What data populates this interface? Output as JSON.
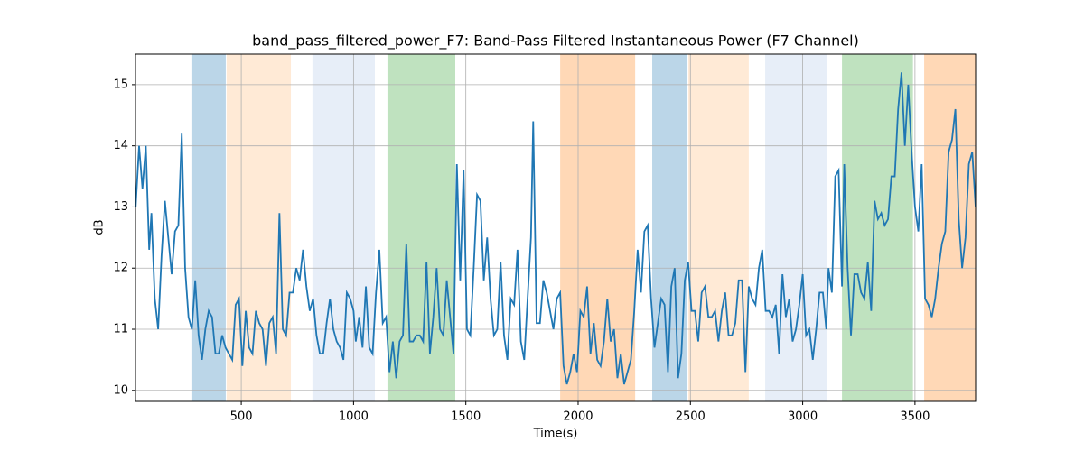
{
  "chart_data": {
    "type": "line",
    "title": "band_pass_filtered_power_F7: Band-Pass Filtered Instantaneous Power (F7 Channel)",
    "xlabel": "Time(s)",
    "ylabel": "dB",
    "xlim": [
      29,
      3770
    ],
    "ylim": [
      9.82,
      15.5
    ],
    "xticks": [
      500,
      1000,
      1500,
      2000,
      2500,
      3000,
      3500
    ],
    "yticks": [
      10,
      11,
      12,
      13,
      14,
      15
    ],
    "grid": true,
    "span_alpha": 0.3,
    "spans": [
      {
        "start": 278,
        "end": 431,
        "color": "#1f77b4"
      },
      {
        "start": 435,
        "end": 721,
        "color": "#ffbb78"
      },
      {
        "start": 817,
        "end": 1095,
        "color": "#aec7e8"
      },
      {
        "start": 1151,
        "end": 1453,
        "color": "#2ca02c"
      },
      {
        "start": 1920,
        "end": 2254,
        "color": "#ff7f0e"
      },
      {
        "start": 2330,
        "end": 2486,
        "color": "#1f77b4"
      },
      {
        "start": 2491,
        "end": 2760,
        "color": "#ffbb78"
      },
      {
        "start": 2833,
        "end": 3110,
        "color": "#aec7e8"
      },
      {
        "start": 3175,
        "end": 3491,
        "color": "#2ca02c"
      },
      {
        "start": 3541,
        "end": 3770,
        "color": "#ff7f0e"
      }
    ],
    "series": [
      {
        "color": "#1f77b4",
        "x": [
          30,
          45,
          60,
          75,
          90,
          100,
          115,
          130,
          145,
          160,
          175,
          190,
          205,
          220,
          235,
          250,
          265,
          280,
          295,
          310,
          325,
          340,
          355,
          370,
          385,
          400,
          415,
          430,
          445,
          460,
          475,
          490,
          505,
          520,
          535,
          550,
          565,
          580,
          595,
          610,
          625,
          640,
          655,
          670,
          685,
          700,
          715,
          730,
          745,
          760,
          775,
          790,
          805,
          820,
          835,
          850,
          865,
          880,
          895,
          910,
          925,
          940,
          955,
          970,
          985,
          1000,
          1010,
          1025,
          1040,
          1055,
          1070,
          1085,
          1100,
          1115,
          1130,
          1145,
          1160,
          1175,
          1190,
          1205,
          1220,
          1235,
          1250,
          1265,
          1280,
          1295,
          1310,
          1325,
          1340,
          1355,
          1370,
          1385,
          1400,
          1415,
          1430,
          1445,
          1460,
          1475,
          1490,
          1505,
          1520,
          1535,
          1550,
          1565,
          1580,
          1595,
          1610,
          1625,
          1640,
          1655,
          1670,
          1685,
          1700,
          1715,
          1730,
          1745,
          1760,
          1775,
          1790,
          1800,
          1815,
          1830,
          1845,
          1860,
          1875,
          1890,
          1905,
          1920,
          1935,
          1950,
          1965,
          1980,
          1995,
          2010,
          2025,
          2040,
          2055,
          2070,
          2085,
          2100,
          2115,
          2130,
          2145,
          2160,
          2175,
          2190,
          2205,
          2220,
          2235,
          2250,
          2265,
          2280,
          2295,
          2310,
          2325,
          2340,
          2355,
          2370,
          2385,
          2400,
          2415,
          2430,
          2445,
          2460,
          2475,
          2490,
          2505,
          2520,
          2535,
          2550,
          2565,
          2580,
          2595,
          2610,
          2625,
          2640,
          2655,
          2670,
          2685,
          2700,
          2715,
          2730,
          2745,
          2760,
          2775,
          2790,
          2805,
          2820,
          2835,
          2850,
          2865,
          2880,
          2895,
          2910,
          2925,
          2940,
          2955,
          2970,
          2985,
          3000,
          3015,
          3030,
          3045,
          3060,
          3075,
          3090,
          3105,
          3115,
          3130,
          3145,
          3160,
          3175,
          3185,
          3200,
          3215,
          3230,
          3245,
          3260,
          3275,
          3290,
          3305,
          3320,
          3335,
          3350,
          3365,
          3380,
          3395,
          3410,
          3425,
          3440,
          3455,
          3470,
          3485,
          3500,
          3515,
          3530,
          3545,
          3560,
          3575,
          3590,
          3605,
          3620,
          3635,
          3650,
          3665,
          3680,
          3695,
          3710,
          3725,
          3740,
          3755,
          3770
        ],
        "values": [
          13.0,
          14.0,
          13.3,
          14.0,
          12.3,
          12.9,
          11.5,
          11.0,
          12.2,
          13.1,
          12.5,
          11.9,
          12.6,
          12.7,
          14.2,
          12.0,
          11.2,
          11.0,
          11.8,
          10.9,
          10.5,
          11.0,
          11.3,
          11.2,
          10.6,
          10.6,
          10.9,
          10.7,
          10.6,
          10.5,
          11.4,
          11.5,
          10.4,
          11.3,
          10.7,
          10.6,
          11.3,
          11.1,
          11.0,
          10.4,
          11.1,
          11.2,
          10.6,
          12.9,
          11.0,
          10.9,
          11.6,
          11.6,
          12.0,
          11.8,
          12.3,
          11.7,
          11.3,
          11.5,
          10.9,
          10.6,
          10.6,
          11.1,
          11.5,
          11.0,
          10.8,
          10.7,
          10.5,
          11.6,
          11.5,
          11.3,
          10.8,
          11.2,
          10.7,
          11.7,
          10.7,
          10.6,
          11.6,
          12.3,
          11.1,
          11.2,
          10.3,
          10.8,
          10.2,
          10.8,
          10.9,
          12.4,
          10.8,
          10.8,
          10.9,
          10.9,
          10.8,
          12.1,
          10.6,
          11.2,
          12.0,
          11.0,
          10.9,
          11.8,
          11.2,
          10.6,
          13.7,
          11.8,
          13.6,
          11.0,
          10.9,
          12.0,
          13.2,
          13.1,
          11.8,
          12.5,
          11.5,
          10.9,
          11.0,
          12.1,
          10.9,
          10.5,
          11.5,
          11.4,
          12.3,
          10.8,
          10.5,
          11.5,
          12.5,
          14.4,
          11.1,
          11.1,
          11.8,
          11.6,
          11.3,
          11.0,
          11.5,
          11.6,
          10.4,
          10.1,
          10.3,
          10.6,
          10.3,
          11.3,
          11.2,
          11.7,
          10.6,
          11.1,
          10.5,
          10.4,
          10.8,
          11.5,
          10.8,
          11.0,
          10.2,
          10.6,
          10.1,
          10.3,
          10.5,
          11.3,
          12.3,
          11.6,
          12.6,
          12.7,
          11.5,
          10.7,
          11.1,
          11.5,
          11.4,
          10.3,
          11.7,
          12.0,
          10.2,
          10.6,
          11.8,
          12.1,
          11.3,
          11.3,
          10.8,
          11.6,
          11.7,
          11.2,
          11.2,
          11.3,
          10.8,
          11.3,
          11.6,
          10.9,
          10.9,
          11.1,
          11.8,
          11.8,
          10.3,
          11.7,
          11.5,
          11.4,
          12.0,
          12.3,
          11.3,
          11.3,
          11.2,
          11.4,
          10.6,
          11.9,
          11.2,
          11.5,
          10.8,
          11.0,
          11.4,
          11.9,
          10.9,
          11.0,
          10.5,
          11.0,
          11.6,
          11.6,
          11.0,
          12.0,
          11.6,
          13.5,
          13.6,
          11.7,
          13.7,
          12.0,
          10.9,
          11.9,
          11.9,
          11.6,
          11.5,
          12.1,
          11.3,
          13.1,
          12.8,
          12.9,
          12.7,
          12.8,
          13.5,
          13.5,
          14.6,
          15.2,
          14.0,
          15.0,
          13.9,
          13.0,
          12.6,
          13.7,
          11.5,
          11.4,
          11.2,
          11.5,
          12.0,
          12.4,
          12.6,
          13.9,
          14.1,
          14.6,
          12.8,
          12.0,
          12.5,
          13.7,
          13.9,
          13.0
        ]
      }
    ]
  }
}
